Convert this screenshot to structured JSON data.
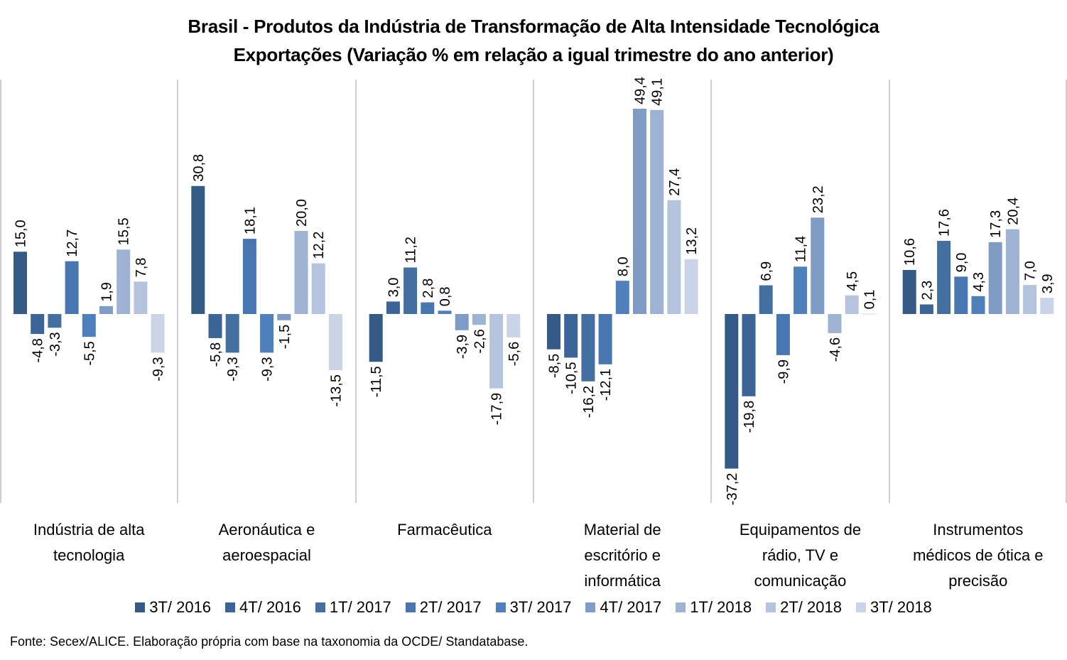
{
  "chart_data": {
    "type": "bar",
    "title": "Brasil - Produtos da Indústria de Transformação de Alta Intensidade Tecnológica",
    "subtitle": "Exportações (Variação % em relação a igual trimestre do ano anterior)",
    "xlabel": "",
    "ylabel": "",
    "ylim": [
      -45,
      56
    ],
    "grid": false,
    "legend_position": "bottom",
    "categories": [
      "Indústria de alta tecnologia",
      "Aeronáutica e aeroespacial",
      "Farmacêutica",
      "Material de escritório e informática",
      "Equipamentos de rádio, TV e comunicação",
      "Instrumentos médicos de ótica e precisão"
    ],
    "category_lines": [
      [
        "Indústria de alta",
        "tecnologia"
      ],
      [
        "Aeronáutica e",
        "aeroespacial"
      ],
      [
        "Farmacêutica"
      ],
      [
        "Material de",
        "escritório e",
        "informática"
      ],
      [
        "Equipamentos de",
        "rádio, TV e",
        "comunicação"
      ],
      [
        "Instrumentos",
        "médicos de ótica e",
        "precisão"
      ]
    ],
    "series": [
      {
        "name": "3T/ 2016",
        "color": "#355a85",
        "values": [
          15.0,
          30.8,
          -11.5,
          -8.5,
          -37.2,
          10.6
        ]
      },
      {
        "name": "4T/ 2016",
        "color": "#3c6496",
        "values": [
          -4.8,
          -5.8,
          3.0,
          -10.5,
          -19.8,
          2.3
        ]
      },
      {
        "name": "1T/ 2017",
        "color": "#436fa1",
        "values": [
          -3.3,
          -9.3,
          11.2,
          -16.2,
          6.9,
          17.6
        ]
      },
      {
        "name": "2T/ 2017",
        "color": "#4876b0",
        "values": [
          12.7,
          18.1,
          2.8,
          -12.1,
          -9.9,
          9.0
        ]
      },
      {
        "name": "3T/ 2017",
        "color": "#4f80bb",
        "values": [
          -5.5,
          -9.3,
          0.8,
          8.0,
          11.4,
          4.3
        ]
      },
      {
        "name": "4T/ 2017",
        "color": "#7f9cc7",
        "values": [
          1.9,
          -1.5,
          -3.9,
          49.4,
          23.2,
          17.3
        ]
      },
      {
        "name": "1T/ 2018",
        "color": "#9eb2d3",
        "values": [
          15.5,
          20.0,
          -2.6,
          49.1,
          -4.6,
          20.4
        ]
      },
      {
        "name": "2T/ 2018",
        "color": "#b5c4de",
        "values": [
          7.8,
          12.2,
          -17.9,
          27.4,
          4.5,
          7.0
        ]
      },
      {
        "name": "3T/ 2018",
        "color": "#cad4e6",
        "values": [
          -9.3,
          -13.5,
          -5.6,
          13.2,
          0.1,
          3.9
        ]
      }
    ],
    "value_labels": [
      [
        "15,0",
        "30,8",
        "-11,5",
        "-8,5",
        "-37,2",
        "10,6"
      ],
      [
        "-4,8",
        "-5,8",
        "3,0",
        "-10,5",
        "-19,8",
        "2,3"
      ],
      [
        "-3,3",
        "-9,3",
        "11,2",
        "-16,2",
        "6,9",
        "17,6"
      ],
      [
        "12,7",
        "18,1",
        "2,8",
        "-12,1",
        "-9,9",
        "9,0"
      ],
      [
        "-5,5",
        "-9,3",
        "0,8",
        "8,0",
        "11,4",
        "4,3"
      ],
      [
        "1,9",
        "-1,5",
        "-3,9",
        "49,4",
        "23,2",
        "17,3"
      ],
      [
        "15,5",
        "20,0",
        "-2,6",
        "49,1",
        "-4,6",
        "20,4"
      ],
      [
        "7,8",
        "12,2",
        "-17,9",
        "27,4",
        "4,5",
        "7,0"
      ],
      [
        "-9,3",
        "-13,5",
        "-5,6",
        "13,2",
        "0,1",
        "3,9"
      ]
    ],
    "divider_color": "#bfbfbf"
  },
  "source_note": "Fonte: Secex/ALICE. Elaboração própria com base na taxonomia da OCDE/ Standatabase."
}
